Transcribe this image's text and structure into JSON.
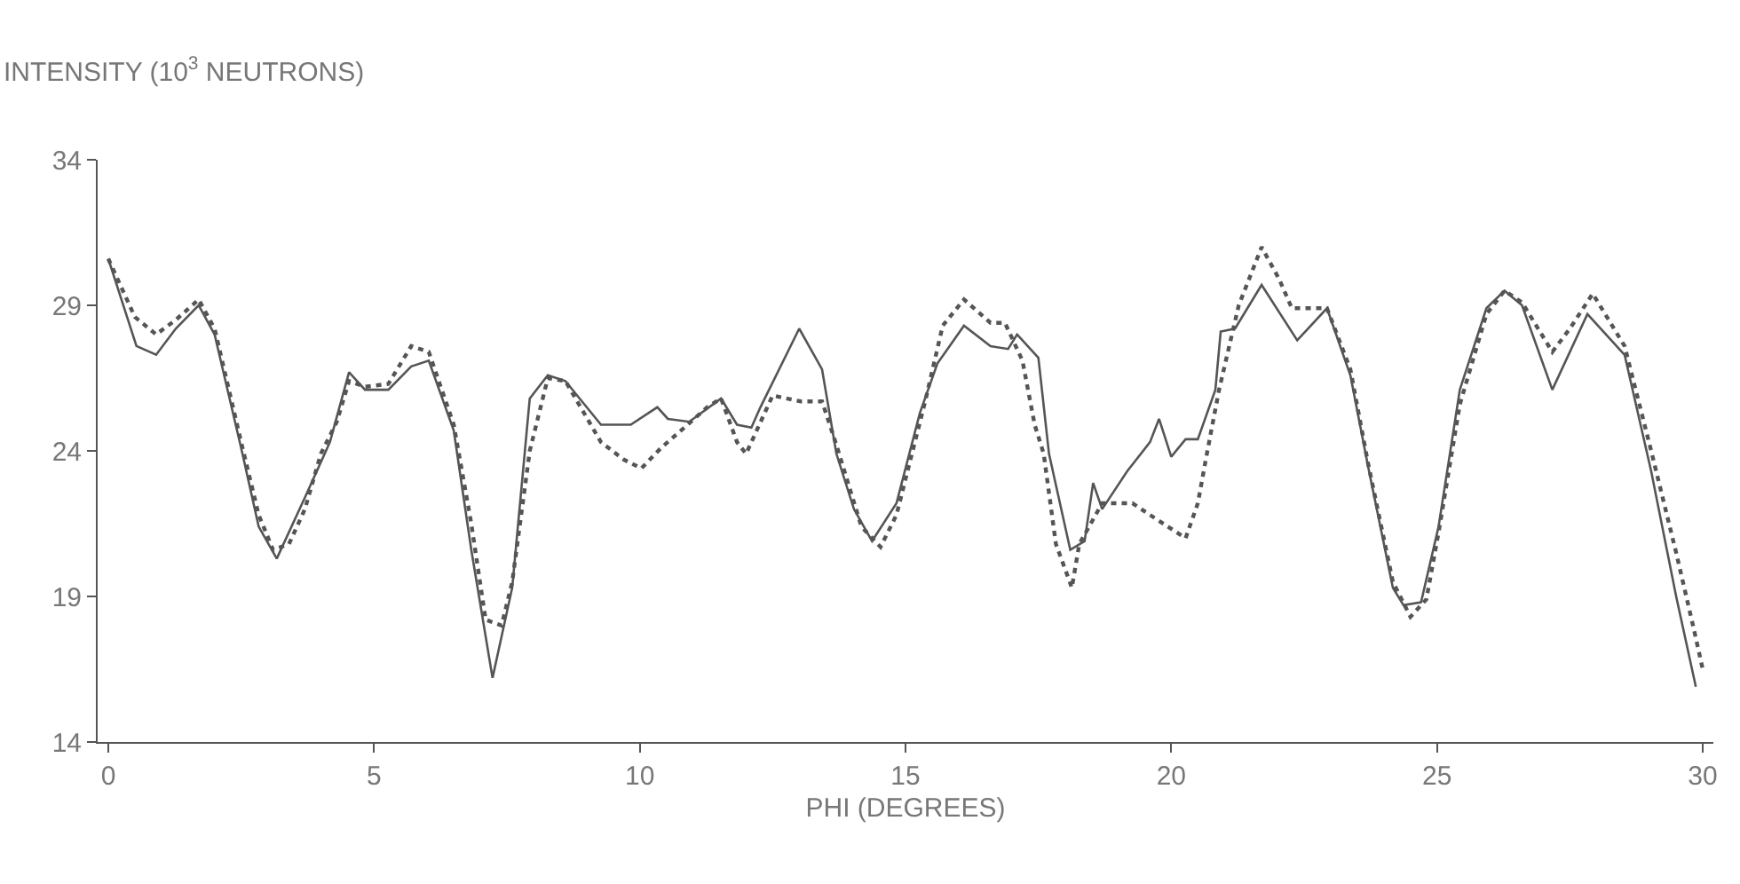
{
  "chart_data": {
    "type": "line",
    "ylabel": "INTENSITY (10$^{3}$ NEUTRONS)",
    "xlabel": "PHI (DEGREES)",
    "xlim": [
      -0.2,
      30.2
    ],
    "xticks": [
      0,
      5,
      10,
      15,
      20,
      25,
      30
    ],
    "ylim": [
      14,
      34
    ],
    "yticks": [
      14,
      19,
      24,
      29,
      34
    ],
    "series": [
      {
        "color": "#555555",
        "line_style": "solid",
        "x": [
          0,
          0.53,
          0.9,
          1.27,
          1.7,
          2.0,
          2.5,
          2.83,
          3.17,
          3.7,
          4.17,
          4.53,
          4.83,
          5.27,
          5.7,
          6.03,
          6.5,
          6.83,
          7.23,
          7.6,
          7.93,
          8.27,
          8.6,
          9.27,
          9.83,
          10.33,
          10.53,
          10.93,
          11.53,
          11.83,
          12.1,
          12.27,
          13.0,
          13.43,
          13.7,
          14.03,
          14.37,
          14.83,
          15.27,
          15.6,
          16.1,
          16.6,
          16.93,
          17.1,
          17.5,
          17.7,
          18.1,
          18.37,
          18.53,
          18.7,
          19.17,
          19.6,
          19.77,
          20.0,
          20.27,
          20.5,
          20.83,
          20.93,
          21.2,
          21.7,
          22.37,
          22.93,
          23.37,
          23.7,
          24.17,
          24.37,
          24.7,
          25.03,
          25.43,
          25.93,
          26.27,
          26.6,
          27.17,
          27.83,
          28.53,
          29.03,
          29.5,
          29.87
        ],
        "values": [
          30.6,
          27.6,
          27.3,
          28.2,
          29.0,
          28.0,
          24.1,
          21.4,
          20.3,
          22.4,
          24.3,
          26.7,
          26.1,
          26.1,
          26.9,
          27.1,
          24.7,
          20.6,
          16.2,
          19.3,
          25.8,
          26.6,
          26.4,
          24.9,
          24.9,
          25.5,
          25.1,
          25.0,
          25.8,
          24.9,
          24.8,
          25.5,
          28.2,
          26.8,
          23.9,
          22.0,
          20.9,
          22.2,
          25.3,
          27.0,
          28.3,
          27.6,
          27.5,
          28.0,
          27.2,
          23.9,
          20.6,
          20.9,
          22.9,
          22.0,
          23.3,
          24.3,
          25.1,
          23.8,
          24.4,
          24.4,
          26.1,
          28.1,
          28.2,
          29.7,
          27.8,
          28.9,
          26.6,
          23.5,
          19.3,
          18.7,
          18.8,
          21.4,
          26.1,
          28.9,
          29.5,
          29.0,
          26.1,
          28.7,
          27.3,
          23.3,
          19.0,
          15.9
        ]
      },
      {
        "color": "#555555",
        "line_style": "dotted",
        "x": [
          0,
          0.5,
          0.9,
          1.27,
          1.7,
          2.0,
          2.5,
          2.83,
          3.1,
          3.4,
          3.7,
          4.0,
          4.3,
          4.53,
          4.83,
          5.27,
          5.7,
          6.03,
          6.5,
          6.83,
          7.1,
          7.4,
          7.6,
          7.93,
          8.27,
          8.6,
          9.27,
          9.7,
          10.03,
          10.4,
          10.9,
          11.27,
          11.53,
          11.83,
          12.0,
          12.5,
          13.03,
          13.43,
          13.7,
          14.17,
          14.53,
          14.83,
          15.37,
          15.7,
          16.1,
          16.6,
          16.87,
          17.2,
          17.43,
          17.6,
          17.83,
          18.13,
          18.27,
          18.7,
          19.27,
          19.6,
          20.27,
          20.5,
          20.67,
          20.9,
          21.27,
          21.7,
          22.03,
          22.27,
          22.93,
          23.37,
          23.7,
          24.17,
          24.5,
          24.8,
          25.03,
          25.43,
          25.93,
          26.27,
          26.6,
          27.17,
          27.5,
          27.93,
          28.53,
          29.03,
          29.5,
          29.83,
          30.0
        ],
        "values": [
          30.6,
          28.6,
          28.0,
          28.5,
          29.2,
          28.2,
          24.3,
          21.8,
          20.6,
          20.8,
          22.0,
          23.9,
          25.0,
          26.4,
          26.2,
          26.3,
          27.6,
          27.4,
          24.9,
          21.5,
          18.2,
          18.0,
          19.5,
          24.0,
          26.5,
          26.4,
          24.3,
          23.7,
          23.4,
          24.1,
          24.9,
          25.5,
          25.8,
          24.3,
          23.9,
          25.9,
          25.7,
          25.7,
          24.2,
          21.4,
          20.7,
          21.8,
          25.7,
          28.3,
          29.2,
          28.4,
          28.4,
          27.1,
          24.9,
          23.9,
          20.8,
          19.3,
          20.8,
          22.2,
          22.2,
          21.8,
          21.0,
          22.2,
          23.9,
          26.1,
          29.0,
          31.0,
          29.9,
          28.9,
          28.9,
          26.8,
          23.6,
          19.5,
          18.3,
          18.9,
          21.2,
          25.6,
          28.7,
          29.5,
          29.1,
          27.4,
          28.2,
          29.4,
          27.6,
          24.0,
          20.5,
          17.9,
          16.5
        ]
      }
    ]
  }
}
